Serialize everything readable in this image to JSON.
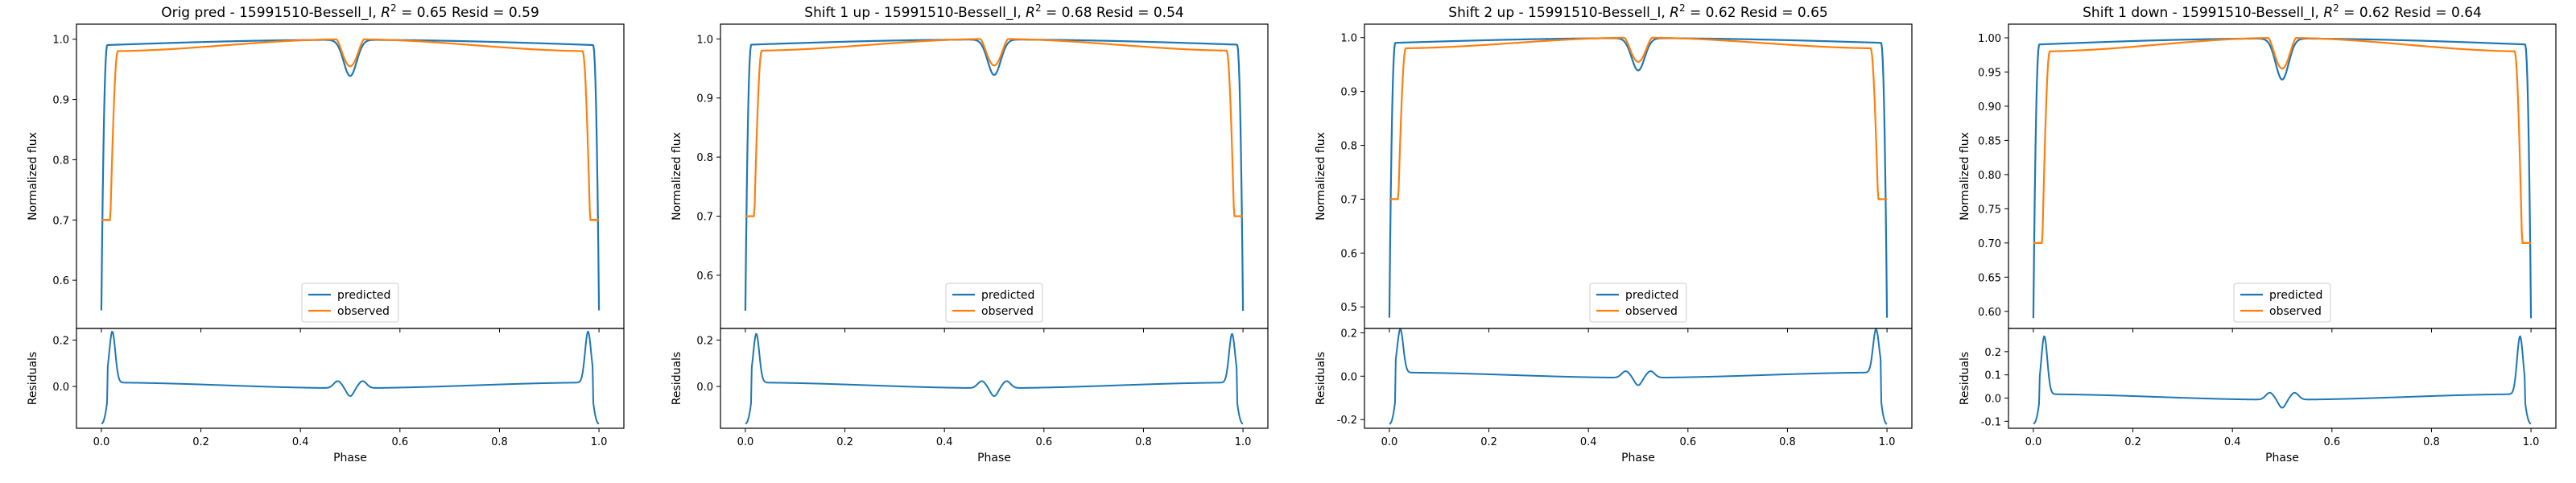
{
  "figure": {
    "panels": [
      {
        "title": "Orig pred - 15991510-Bessell_I, $R^2 = 0.65$ Resid = 0.59",
        "title_main": "Orig pred - 15991510-Bessell_I, ",
        "title_r2": "R",
        "title_sup": "2",
        "title_rest": " = 0.65 Resid = 0.59"
      },
      {
        "title": "Shift 1 up - 15991510-Bessell_I, $R^2 = 0.68$ Resid = 0.54",
        "title_main": "Shift 1 up - 15991510-Bessell_I, ",
        "title_r2": "R",
        "title_sup": "2",
        "title_rest": " = 0.68 Resid = 0.54"
      },
      {
        "title": "Shift 2 up - 15991510-Bessell_I, $R^2 = 0.62$ Resid = 0.65",
        "title_main": "Shift 2 up - 15991510-Bessell_I, ",
        "title_r2": "R",
        "title_sup": "2",
        "title_rest": " = 0.62 Resid = 0.65"
      },
      {
        "title": "Shift 1 down - 15991510-Bessell_I, $R^2 = 0.62$ Resid = 0.64",
        "title_main": "Shift 1 down - 15991510-Bessell_I, ",
        "title_r2": "R",
        "title_sup": "2",
        "title_rest": " = 0.62 Resid = 0.64"
      }
    ]
  },
  "chart_data": [
    {
      "type": "line",
      "title": "Orig pred - 15991510-Bessell_I, R^2 = 0.65 Resid = 0.59",
      "xlabel": "Phase",
      "ylabel": "Normalized flux",
      "resid_ylabel": "Residuals",
      "xlim": [
        -0.05,
        1.05
      ],
      "ylim": [
        0.52,
        1.025
      ],
      "resid_ylim": [
        -0.18,
        0.25
      ],
      "x_ticks": [
        "0.0",
        "0.2",
        "0.4",
        "0.6",
        "0.8",
        "1.0"
      ],
      "y_ticks": [
        "0.6",
        "0.7",
        "0.8",
        "0.9",
        "1.0"
      ],
      "y_tick_values": [
        0.6,
        0.7,
        0.8,
        0.9,
        1.0
      ],
      "resid_ticks": [
        "0.0",
        "0.2"
      ],
      "resid_tick_values": [
        0.0,
        0.2
      ],
      "legend": {
        "position": "lower center",
        "entries": [
          "predicted",
          "observed"
        ]
      },
      "colors": {
        "predicted": "#1f77b4",
        "observed": "#ff7f0e"
      },
      "predicted": {
        "base": 0.55,
        "top": 0.99,
        "peak": 1.0,
        "dip": 0.94
      },
      "observed": {
        "base": 0.7,
        "top": 0.98,
        "peak": 1.0,
        "dip": 0.955
      },
      "residuals": {
        "baseline": 0.005,
        "spike": 0.22,
        "min": -0.16
      }
    },
    {
      "type": "line",
      "title": "Shift 1 up - 15991510-Bessell_I, R^2 = 0.68 Resid = 0.54",
      "xlabel": "Phase",
      "ylabel": "Normalized flux",
      "resid_ylabel": "Residuals",
      "xlim": [
        -0.05,
        1.05
      ],
      "ylim": [
        0.51,
        1.025
      ],
      "resid_ylim": [
        -0.18,
        0.25
      ],
      "x_ticks": [
        "0.0",
        "0.2",
        "0.4",
        "0.6",
        "0.8",
        "1.0"
      ],
      "y_ticks": [
        "0.6",
        "0.7",
        "0.8",
        "0.9",
        "1.0"
      ],
      "y_tick_values": [
        0.6,
        0.7,
        0.8,
        0.9,
        1.0
      ],
      "resid_ticks": [
        "0.0",
        "0.2"
      ],
      "resid_tick_values": [
        0.0,
        0.2
      ],
      "legend": {
        "position": "lower center",
        "entries": [
          "predicted",
          "observed"
        ]
      },
      "colors": {
        "predicted": "#1f77b4",
        "observed": "#ff7f0e"
      },
      "predicted": {
        "base": 0.54,
        "top": 0.99,
        "peak": 1.0,
        "dip": 0.94
      },
      "observed": {
        "base": 0.7,
        "top": 0.98,
        "peak": 1.0,
        "dip": 0.955
      },
      "residuals": {
        "baseline": 0.005,
        "spike": 0.21,
        "min": -0.16
      }
    },
    {
      "type": "line",
      "title": "Shift 2 up - 15991510-Bessell_I, R^2 = 0.62 Resid = 0.65",
      "xlabel": "Phase",
      "ylabel": "Normalized flux",
      "resid_ylabel": "Residuals",
      "xlim": [
        -0.05,
        1.05
      ],
      "ylim": [
        0.46,
        1.025
      ],
      "resid_ylim": [
        -0.24,
        0.22
      ],
      "x_ticks": [
        "0.0",
        "0.2",
        "0.4",
        "0.6",
        "0.8",
        "1.0"
      ],
      "y_ticks": [
        "0.5",
        "0.6",
        "0.7",
        "0.8",
        "0.9",
        "1.0"
      ],
      "y_tick_values": [
        0.5,
        0.6,
        0.7,
        0.8,
        0.9,
        1.0
      ],
      "resid_ticks": [
        "-0.2",
        "0.0",
        "0.2"
      ],
      "resid_tick_values": [
        -0.2,
        0.0,
        0.2
      ],
      "legend": {
        "position": "lower center",
        "entries": [
          "predicted",
          "observed"
        ]
      },
      "colors": {
        "predicted": "#1f77b4",
        "observed": "#ff7f0e"
      },
      "predicted": {
        "base": 0.48,
        "top": 0.99,
        "peak": 1.0,
        "dip": 0.94
      },
      "observed": {
        "base": 0.7,
        "top": 0.98,
        "peak": 1.0,
        "dip": 0.955
      },
      "residuals": {
        "baseline": 0.005,
        "spike": 0.2,
        "min": -0.22
      }
    },
    {
      "type": "line",
      "title": "Shift 1 down - 15991510-Bessell_I, R^2 = 0.62 Resid = 0.64",
      "xlabel": "Phase",
      "ylabel": "Normalized flux",
      "resid_ylabel": "Residuals",
      "xlim": [
        -0.05,
        1.05
      ],
      "ylim": [
        0.575,
        1.02
      ],
      "resid_ylim": [
        -0.13,
        0.3
      ],
      "x_ticks": [
        "0.0",
        "0.2",
        "0.4",
        "0.6",
        "0.8",
        "1.0"
      ],
      "y_ticks": [
        "0.60",
        "0.65",
        "0.70",
        "0.75",
        "0.80",
        "0.85",
        "0.90",
        "0.95",
        "1.00"
      ],
      "y_tick_values": [
        0.6,
        0.65,
        0.7,
        0.75,
        0.8,
        0.85,
        0.9,
        0.95,
        1.0
      ],
      "resid_ticks": [
        "-0.1",
        "0.0",
        "0.1",
        "0.2"
      ],
      "resid_tick_values": [
        -0.1,
        0.0,
        0.1,
        0.2
      ],
      "legend": {
        "position": "lower center",
        "entries": [
          "predicted",
          "observed"
        ]
      },
      "colors": {
        "predicted": "#1f77b4",
        "observed": "#ff7f0e"
      },
      "predicted": {
        "base": 0.59,
        "top": 0.99,
        "peak": 1.0,
        "dip": 0.94
      },
      "observed": {
        "base": 0.7,
        "top": 0.98,
        "peak": 1.0,
        "dip": 0.955
      },
      "residuals": {
        "baseline": 0.005,
        "spike": 0.25,
        "min": -0.11
      }
    }
  ]
}
